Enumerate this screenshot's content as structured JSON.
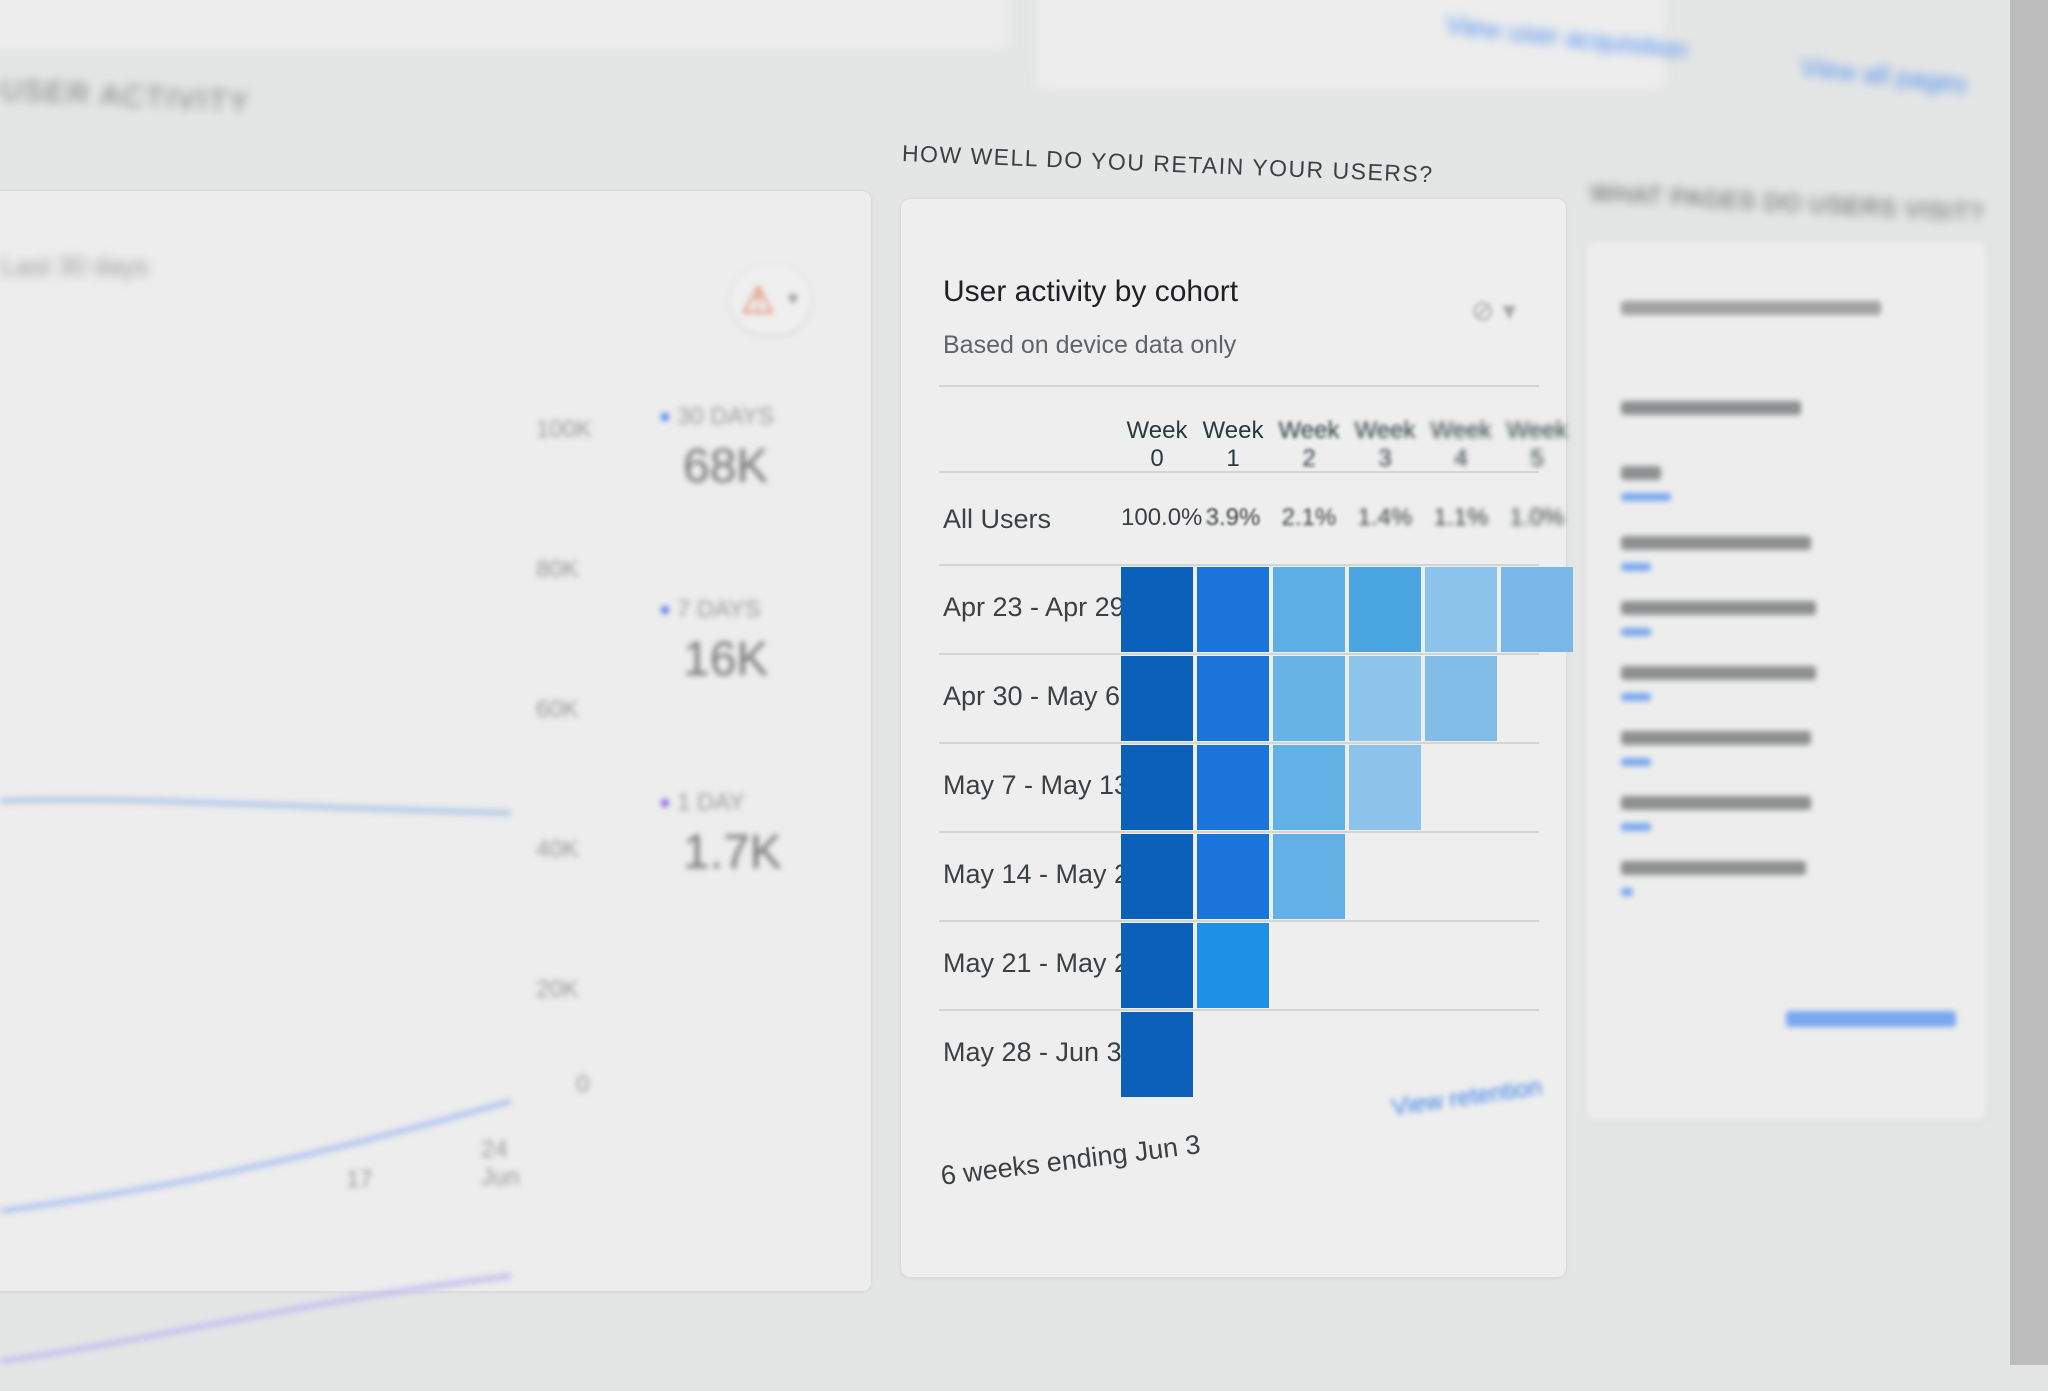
{
  "top": {
    "link1": "View user acquisition",
    "link2": "View all pages"
  },
  "left_panel": {
    "heading": "USER ACTIVITY",
    "subtitle": "Last 30 days",
    "y_ticks": [
      "100K",
      "80K",
      "60K",
      "40K",
      "20K",
      "0"
    ],
    "x_ticks": [
      "17",
      "24 Jun"
    ],
    "legend": [
      {
        "label": "30 DAYS",
        "value": "68K",
        "color": "#4a7ff0"
      },
      {
        "label": "7 DAYS",
        "value": "16K",
        "color": "#5b6ff0"
      },
      {
        "label": "1 DAY",
        "value": "1.7K",
        "color": "#8a5be0"
      }
    ]
  },
  "cohort": {
    "section_heading": "HOW WELL DO YOU RETAIN YOUR USERS?",
    "title": "User activity by cohort",
    "subtitle": "Based on device data only",
    "weeks": [
      "Week 0",
      "Week 1",
      "Week 2",
      "Week 3",
      "Week 4",
      "Week 5"
    ],
    "all_users_label": "All Users",
    "all_users": [
      "100.0%",
      "3.9%",
      "2.1%",
      "1.4%",
      "1.1%",
      "1.0%"
    ],
    "rows": [
      {
        "label": "Apr 23 - Apr 29",
        "cells": [
          "#0b60b9",
          "#1a74d9",
          "#5eafe5",
          "#4aa6e0",
          "#8cc3ea",
          "#79b8e6"
        ]
      },
      {
        "label": "Apr 30 - May 6",
        "cells": [
          "#0b60b9",
          "#1a74d9",
          "#68b4e6",
          "#8fc4ea",
          "#82bde8"
        ]
      },
      {
        "label": "May 7 - May 13",
        "cells": [
          "#0b60b9",
          "#1a74d9",
          "#62b1e6",
          "#8dc3ea"
        ]
      },
      {
        "label": "May 14 - May 20",
        "cells": [
          "#0b60b9",
          "#1a74d9",
          "#62b0e6"
        ]
      },
      {
        "label": "May 21 - May 27",
        "cells": [
          "#0b60b9",
          "#1e90e6"
        ]
      },
      {
        "label": "May 28 - Jun 3",
        "cells": [
          "#0b60b9"
        ]
      }
    ],
    "footer": "6 weeks ending Jun 3",
    "view_link": "View retention"
  },
  "right_panel": {
    "heading": "WHAT PAGES DO USERS VISIT?"
  }
}
